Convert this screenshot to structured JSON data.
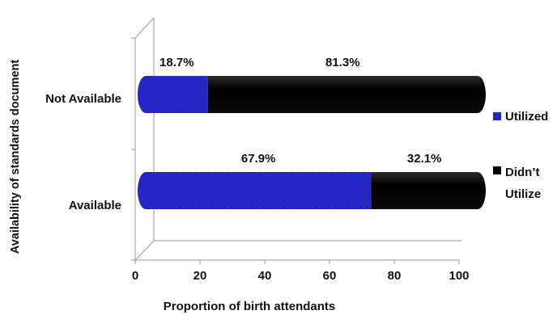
{
  "chart_data": {
    "type": "bar",
    "orientation": "horizontal",
    "stacked": true,
    "title": "",
    "xlabel": "Proportion of birth attendants",
    "ylabel": "Availability of standards document",
    "categories": [
      "Not Available",
      "Available"
    ],
    "series": [
      {
        "name": "Utilized",
        "values": [
          18.7,
          67.9
        ],
        "labels": [
          "18.7%",
          "67.9%"
        ],
        "color": "#2a2ad8"
      },
      {
        "name": "Didn’t Utilize",
        "name_lines": [
          "Didn’t",
          "Utilize"
        ],
        "values": [
          81.3,
          32.1
        ],
        "labels": [
          "81.3%",
          "32.1%"
        ],
        "color": "#000000"
      }
    ],
    "xlim": [
      0,
      100
    ],
    "xticks": [
      "0",
      "20",
      "40",
      "60",
      "80",
      "100"
    ],
    "grid": false,
    "legend_position": "right",
    "style": "3d-cylinder"
  }
}
